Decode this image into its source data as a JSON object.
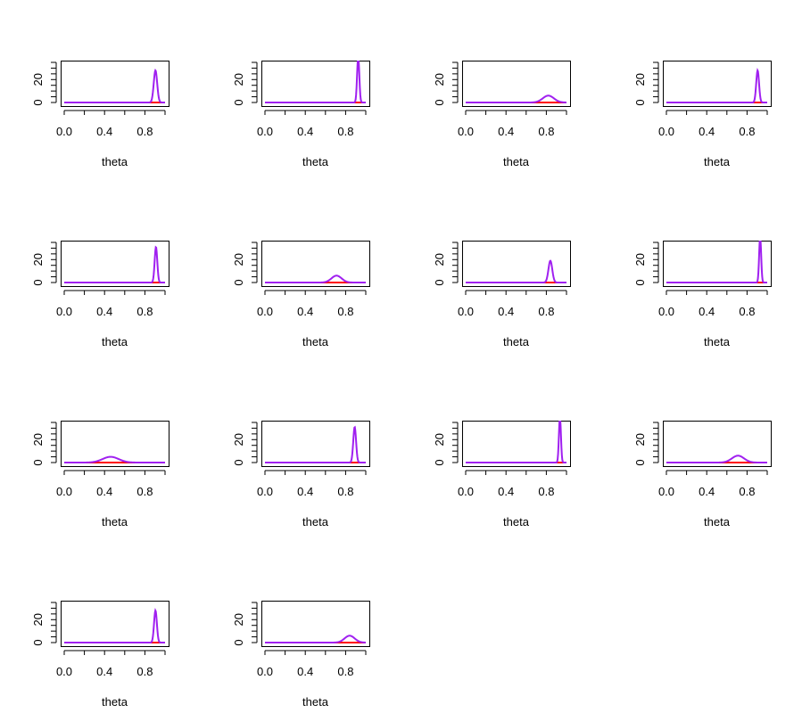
{
  "figure": {
    "background": "#ffffff",
    "layout": {
      "rows": 4,
      "cols": 4
    }
  },
  "style": {
    "curve_color": "#a020f0",
    "flat_color": "#ff0000",
    "accent_color": "#ff8c00",
    "axis_color": "#000000"
  },
  "chart_data": [
    {
      "type": "line",
      "xlabel": "theta",
      "xlim": [
        0,
        1
      ],
      "ylim": [
        0,
        35
      ],
      "x_ticks": [
        "0.0",
        "0.4",
        "0.8"
      ],
      "y_ticks": [
        "0",
        "20"
      ],
      "series": [
        {
          "shape": "peak",
          "center": 0.905,
          "width": 0.017,
          "height": 28
        }
      ]
    },
    {
      "type": "line",
      "xlabel": "theta",
      "xlim": [
        0,
        1
      ],
      "ylim": [
        0,
        35
      ],
      "x_ticks": [
        "0.0",
        "0.4",
        "0.8"
      ],
      "y_ticks": [
        "0",
        "20"
      ],
      "series": [
        {
          "shape": "peak",
          "center": 0.925,
          "width": 0.011,
          "height": 40
        }
      ]
    },
    {
      "type": "line",
      "xlabel": "theta",
      "xlim": [
        0,
        1
      ],
      "ylim": [
        0,
        35
      ],
      "x_ticks": [
        "0.0",
        "0.4",
        "0.8"
      ],
      "y_ticks": [
        "0",
        "20"
      ],
      "series": [
        {
          "shape": "peak",
          "center": 0.82,
          "width": 0.055,
          "height": 6
        }
      ]
    },
    {
      "type": "line",
      "xlabel": "theta",
      "xlim": [
        0,
        1
      ],
      "ylim": [
        0,
        35
      ],
      "x_ticks": [
        "0.0",
        "0.4",
        "0.8"
      ],
      "y_ticks": [
        "0",
        "20"
      ],
      "series": [
        {
          "shape": "peak",
          "center": 0.905,
          "width": 0.014,
          "height": 28
        }
      ]
    },
    {
      "type": "line",
      "xlabel": "theta",
      "xlim": [
        0,
        1
      ],
      "ylim": [
        0,
        35
      ],
      "x_ticks": [
        "0.0",
        "0.4",
        "0.8"
      ],
      "y_ticks": [
        "0",
        "20"
      ],
      "series": [
        {
          "shape": "peak",
          "center": 0.91,
          "width": 0.013,
          "height": 31
        }
      ]
    },
    {
      "type": "line",
      "xlabel": "theta",
      "xlim": [
        0,
        1
      ],
      "ylim": [
        0,
        35
      ],
      "x_ticks": [
        "0.0",
        "0.4",
        "0.8"
      ],
      "y_ticks": [
        "0",
        "20"
      ],
      "series": [
        {
          "shape": "peak",
          "center": 0.71,
          "width": 0.05,
          "height": 6
        }
      ]
    },
    {
      "type": "line",
      "xlabel": "theta",
      "xlim": [
        0,
        1
      ],
      "ylim": [
        0,
        35
      ],
      "x_ticks": [
        "0.0",
        "0.4",
        "0.8"
      ],
      "y_ticks": [
        "0",
        "20"
      ],
      "series": [
        {
          "shape": "peak",
          "center": 0.84,
          "width": 0.019,
          "height": 19
        }
      ]
    },
    {
      "type": "line",
      "xlabel": "theta",
      "xlim": [
        0,
        1
      ],
      "ylim": [
        0,
        35
      ],
      "x_ticks": [
        "0.0",
        "0.4",
        "0.8"
      ],
      "y_ticks": [
        "0",
        "20"
      ],
      "series": [
        {
          "shape": "peak",
          "center": 0.93,
          "width": 0.01,
          "height": 40
        }
      ]
    },
    {
      "type": "line",
      "xlabel": "theta",
      "xlim": [
        0,
        1
      ],
      "ylim": [
        0,
        35
      ],
      "x_ticks": [
        "0.0",
        "0.4",
        "0.8"
      ],
      "y_ticks": [
        "0",
        "20"
      ],
      "series": [
        {
          "shape": "peak",
          "center": 0.46,
          "width": 0.08,
          "height": 5
        }
      ]
    },
    {
      "type": "line",
      "xlabel": "theta",
      "xlim": [
        0,
        1
      ],
      "ylim": [
        0,
        35
      ],
      "x_ticks": [
        "0.0",
        "0.4",
        "0.8"
      ],
      "y_ticks": [
        "0",
        "20"
      ],
      "series": [
        {
          "shape": "peak",
          "center": 0.89,
          "width": 0.014,
          "height": 31
        }
      ]
    },
    {
      "type": "line",
      "xlabel": "theta",
      "xlim": [
        0,
        1
      ],
      "ylim": [
        0,
        35
      ],
      "x_ticks": [
        "0.0",
        "0.4",
        "0.8"
      ],
      "y_ticks": [
        "0",
        "20"
      ],
      "series": [
        {
          "shape": "peak",
          "center": 0.935,
          "width": 0.01,
          "height": 40
        }
      ]
    },
    {
      "type": "line",
      "xlabel": "theta",
      "xlim": [
        0,
        1
      ],
      "ylim": [
        0,
        35
      ],
      "x_ticks": [
        "0.0",
        "0.4",
        "0.8"
      ],
      "y_ticks": [
        "0",
        "20"
      ],
      "series": [
        {
          "shape": "peak",
          "center": 0.71,
          "width": 0.06,
          "height": 6
        }
      ]
    },
    {
      "type": "line",
      "xlabel": "theta",
      "xlim": [
        0,
        1
      ],
      "ylim": [
        0,
        35
      ],
      "x_ticks": [
        "0.0",
        "0.4",
        "0.8"
      ],
      "y_ticks": [
        "0",
        "20"
      ],
      "series": [
        {
          "shape": "peak",
          "center": 0.905,
          "width": 0.014,
          "height": 28
        }
      ]
    },
    {
      "type": "line",
      "xlabel": "theta",
      "xlim": [
        0,
        1
      ],
      "ylim": [
        0,
        35
      ],
      "x_ticks": [
        "0.0",
        "0.4",
        "0.8"
      ],
      "y_ticks": [
        "0",
        "20"
      ],
      "series": [
        {
          "shape": "peak",
          "center": 0.84,
          "width": 0.05,
          "height": 6
        }
      ]
    }
  ]
}
